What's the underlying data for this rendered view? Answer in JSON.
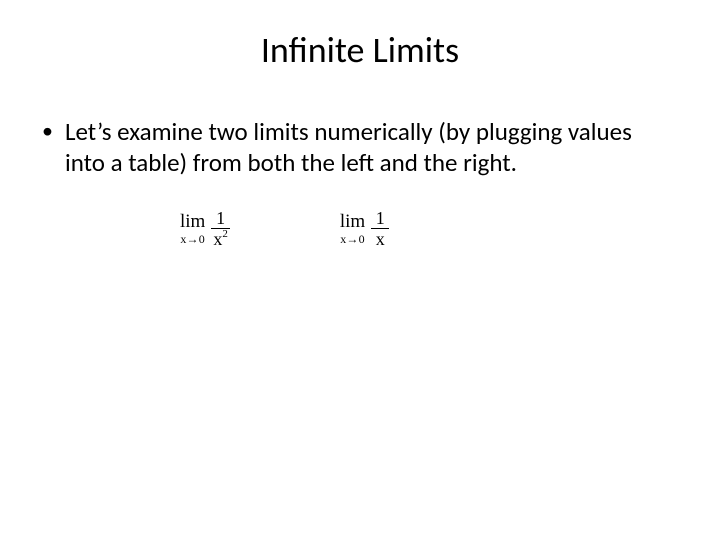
{
  "slide": {
    "title": "Infinite Limits",
    "bullet": {
      "marker": "•",
      "text": "Let’s examine two limits numerically (by plugging values into a table) from both the left and the right."
    },
    "formulas": [
      {
        "lim_label": "lim",
        "sub_text": "x→0",
        "numerator": "1",
        "denominator_base": "x",
        "denominator_exp": "2"
      },
      {
        "lim_label": "lim",
        "sub_text": "x→0",
        "numerator": "1",
        "denominator_base": "x",
        "denominator_exp": ""
      }
    ],
    "colors": {
      "background": "#ffffff",
      "text": "#000000"
    },
    "typography": {
      "title_fontsize": 36,
      "body_fontsize": 25,
      "title_font": "Calibri",
      "body_font": "Calibri",
      "formula_font": "Times New Roman"
    }
  }
}
